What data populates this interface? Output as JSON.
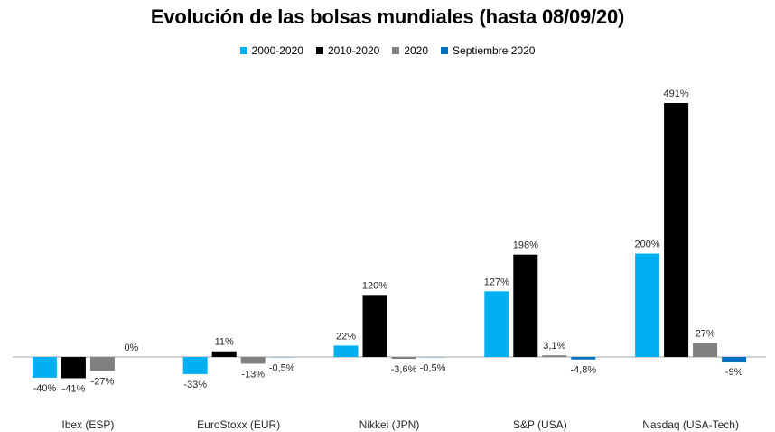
{
  "chart_data": {
    "type": "bar",
    "title": "Evolución de las bolsas mundiales (hasta 08/09/20)",
    "categories": [
      "Ibex (ESP)",
      "EuroStoxx (EUR)",
      "Nikkei (JPN)",
      "S&P (USA)",
      "Nasdaq (USA-Tech)"
    ],
    "series": [
      {
        "name": "2000-2020",
        "color": "#00b0f0",
        "values": [
          -40,
          -33,
          22,
          127,
          200
        ],
        "labels": [
          "-40%",
          "-33%",
          "22%",
          "127%",
          "200%"
        ]
      },
      {
        "name": "2010-2020",
        "color": "#000000",
        "values": [
          -41,
          11,
          120,
          198,
          491
        ],
        "labels": [
          "-41%",
          "11%",
          "120%",
          "198%",
          "491%"
        ]
      },
      {
        "name": "2020",
        "color": "#808080",
        "values": [
          -27,
          -13,
          -3.6,
          3.1,
          27
        ],
        "labels": [
          "-27%",
          "-13%",
          "-3,6%",
          "3,1%",
          "27%"
        ]
      },
      {
        "name": "Septiembre 2020",
        "color": "#0070c0",
        "values": [
          0,
          -0.5,
          -0.5,
          -4.8,
          -9
        ],
        "labels": [
          "0%",
          "-0,5%",
          "-0,5%",
          "-4,8%",
          "-9%"
        ]
      }
    ],
    "legend_position": "top",
    "grid": false
  }
}
